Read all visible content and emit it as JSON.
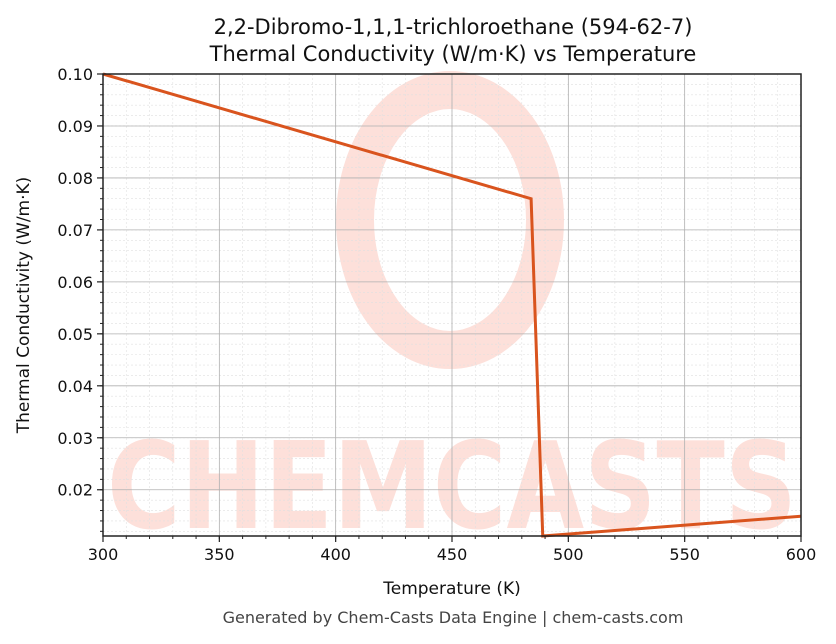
{
  "title_line1": "2,2-Dibromo-1,1,1-trichloroethane (594-62-7)",
  "title_line2": "Thermal Conductivity (W/m·K) vs Temperature",
  "footer": "Generated by Chem-Casts Data Engine | chem-casts.com",
  "watermark": "CHEMCASTS",
  "colors": {
    "line": "#d9541e",
    "watermark": "#fde0da",
    "grid_major": "#b0b0b0",
    "grid_minor": "#e0e0e0"
  },
  "chart_data": {
    "type": "line",
    "title": "2,2-Dibromo-1,1,1-trichloroethane (594-62-7) Thermal Conductivity (W/m·K) vs Temperature",
    "xlabel": "Temperature (K)",
    "ylabel": "Thermal Conductivity (W/m·K)",
    "xlim": [
      300,
      600
    ],
    "ylim": [
      0.0111,
      0.1
    ],
    "xticks": [
      300,
      350,
      400,
      450,
      500,
      550,
      600
    ],
    "yticks": [
      0.02,
      0.03,
      0.04,
      0.05,
      0.06,
      0.07,
      0.08,
      0.09,
      0.1
    ],
    "ytick_labels": [
      "0.02",
      "0.03",
      "0.04",
      "0.05",
      "0.06",
      "0.07",
      "0.08",
      "0.09",
      "0.10"
    ],
    "grid": true,
    "series": [
      {
        "name": "Thermal Conductivity",
        "x": [
          300,
          484,
          489,
          600
        ],
        "y": [
          0.1,
          0.076,
          0.0111,
          0.0149
        ]
      }
    ]
  }
}
